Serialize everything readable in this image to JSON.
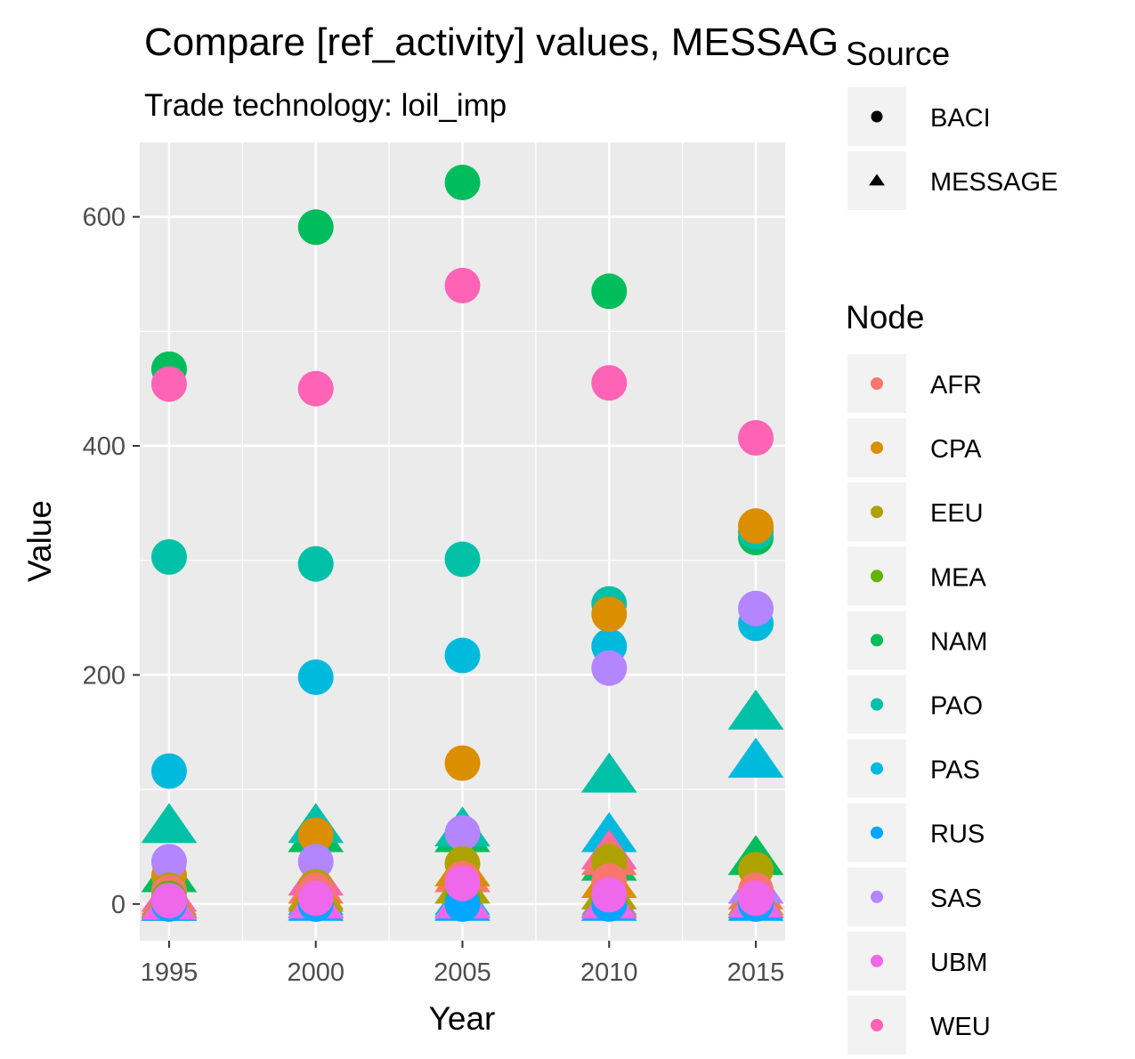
{
  "chart_data": {
    "type": "scatter",
    "title": "Compare [ref_activity] values, MESSAGE vs. BACI",
    "subtitle": "Trade technology: loil_imp",
    "xlabel": "Year",
    "ylabel": "Value",
    "xlim": [
      1994,
      2016
    ],
    "ylim": [
      -32,
      665
    ],
    "x_ticks": [
      1995,
      2000,
      2005,
      2010,
      2015
    ],
    "y_ticks": [
      0,
      200,
      400,
      600
    ],
    "grid": true,
    "legend_position": "right",
    "legends": [
      {
        "title": "Source",
        "entries": [
          {
            "label": "BACI",
            "shape": "circle"
          },
          {
            "label": "MESSAGE",
            "shape": "triangle"
          }
        ]
      },
      {
        "title": "Node",
        "entries": [
          {
            "label": "AFR",
            "color": "#F8766D"
          },
          {
            "label": "CPA",
            "color": "#DB8E00"
          },
          {
            "label": "EEU",
            "color": "#AEA200"
          },
          {
            "label": "MEA",
            "color": "#64B200"
          },
          {
            "label": "NAM",
            "color": "#00BD5C"
          },
          {
            "label": "PAO",
            "color": "#00C1A7"
          },
          {
            "label": "PAS",
            "color": "#00BADE"
          },
          {
            "label": "RUS",
            "color": "#00A6FF"
          },
          {
            "label": "SAS",
            "color": "#B385FF"
          },
          {
            "label": "UBM",
            "color": "#EF67EB"
          },
          {
            "label": "WEU",
            "color": "#FF63B6"
          }
        ]
      }
    ],
    "series": [
      {
        "name": "NAM",
        "source": "MESSAGE",
        "x": [
          1995,
          2000,
          2005,
          2010,
          2015
        ],
        "y": [
          25,
          60,
          60,
          35,
          40
        ]
      },
      {
        "name": "PAO",
        "source": "MESSAGE",
        "x": [
          1995,
          2000,
          2005,
          2010,
          2015
        ],
        "y": [
          68,
          68,
          65,
          112,
          167
        ]
      },
      {
        "name": "PAS",
        "source": "MESSAGE",
        "x": [
          1995,
          2000,
          2005,
          2010,
          2015
        ],
        "y": [
          3,
          5,
          5,
          60,
          125
        ]
      },
      {
        "name": "WEU",
        "source": "MESSAGE",
        "x": [
          1995,
          2000,
          2005,
          2010,
          2015
        ],
        "y": [
          8,
          22,
          25,
          45,
          15
        ]
      },
      {
        "name": "AFR",
        "source": "MESSAGE",
        "x": [
          1995,
          2000,
          2005,
          2010,
          2015
        ],
        "y": [
          5,
          15,
          25,
          40,
          10
        ]
      },
      {
        "name": "CPA",
        "source": "MESSAGE",
        "x": [
          1995,
          2000,
          2005,
          2010,
          2015
        ],
        "y": [
          2,
          10,
          30,
          20,
          5
        ]
      },
      {
        "name": "SAS",
        "source": "MESSAGE",
        "x": [
          1995,
          2000,
          2005,
          2010,
          2015
        ],
        "y": [
          2,
          3,
          3,
          5,
          15
        ]
      },
      {
        "name": "MEA",
        "source": "MESSAGE",
        "x": [
          1995,
          2000,
          2005,
          2010,
          2015
        ],
        "y": [
          0,
          2,
          2,
          3,
          2
        ]
      },
      {
        "name": "RUS",
        "source": "MESSAGE",
        "x": [
          1995,
          2000,
          2005,
          2010,
          2015
        ],
        "y": [
          0,
          0,
          0,
          0,
          0
        ]
      },
      {
        "name": "EEU",
        "source": "MESSAGE",
        "x": [
          1995,
          2000,
          2005,
          2010,
          2015
        ],
        "y": [
          3,
          8,
          15,
          10,
          5
        ]
      },
      {
        "name": "UBM",
        "source": "MESSAGE",
        "x": [
          1995,
          2000,
          2005,
          2010,
          2015
        ],
        "y": [
          1,
          2,
          2,
          2,
          3
        ]
      },
      {
        "name": "NAM",
        "source": "BACI",
        "x": [
          1995,
          2000,
          2005,
          2010,
          2015
        ],
        "y": [
          467,
          591,
          630,
          535,
          320
        ]
      },
      {
        "name": "WEU",
        "source": "BACI",
        "x": [
          1995,
          2000,
          2005,
          2010,
          2015
        ],
        "y": [
          454,
          450,
          540,
          455,
          407
        ]
      },
      {
        "name": "PAO",
        "source": "BACI",
        "x": [
          1995,
          2000,
          2005,
          2010,
          2015
        ],
        "y": [
          303,
          297,
          301,
          262,
          325
        ]
      },
      {
        "name": "PAS",
        "source": "BACI",
        "x": [
          1995,
          2000,
          2005,
          2010,
          2015
        ],
        "y": [
          116,
          198,
          217,
          225,
          245
        ]
      },
      {
        "name": "CPA",
        "source": "BACI",
        "x": [
          1995,
          2000,
          2005,
          2010,
          2015
        ],
        "y": [
          25,
          60,
          123,
          253,
          330
        ]
      },
      {
        "name": "SAS",
        "source": "BACI",
        "x": [
          1995,
          2000,
          2005,
          2010,
          2015
        ],
        "y": [
          37,
          37,
          62,
          206,
          258
        ]
      },
      {
        "name": "EEU",
        "source": "BACI",
        "x": [
          1995,
          2000,
          2005,
          2010,
          2015
        ],
        "y": [
          12,
          15,
          35,
          37,
          30
        ]
      },
      {
        "name": "AFR",
        "source": "BACI",
        "x": [
          1995,
          2000,
          2005,
          2010,
          2015
        ],
        "y": [
          10,
          12,
          22,
          20,
          12
        ]
      },
      {
        "name": "MEA",
        "source": "BACI",
        "x": [
          1995,
          2000,
          2005,
          2010,
          2015
        ],
        "y": [
          5,
          5,
          5,
          5,
          2
        ]
      },
      {
        "name": "RUS",
        "source": "BACI",
        "x": [
          1995,
          2000,
          2005,
          2010,
          2015
        ],
        "y": [
          0,
          0,
          0,
          0,
          0
        ]
      },
      {
        "name": "UBM",
        "source": "BACI",
        "x": [
          1995,
          2000,
          2005,
          2010,
          2015
        ],
        "y": [
          3,
          5,
          18,
          8,
          5
        ]
      }
    ]
  }
}
